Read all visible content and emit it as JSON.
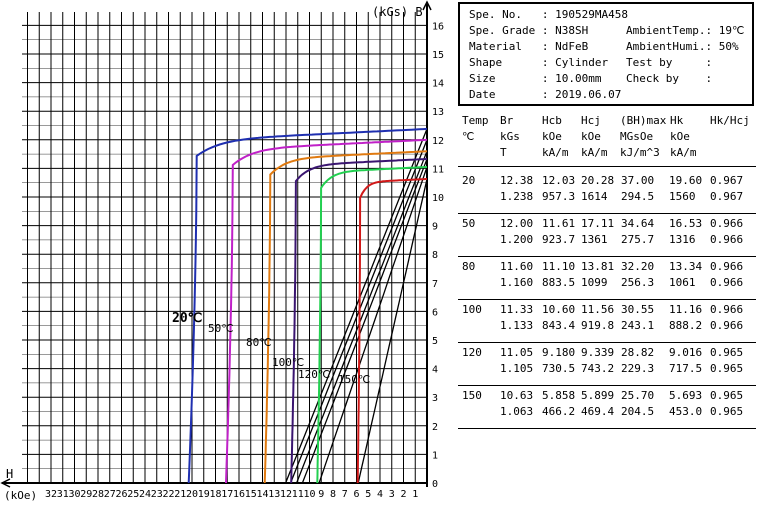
{
  "chart_data": {
    "type": "line",
    "axes": {
      "y_label": "(kGs) B",
      "x_label_top": "H",
      "x_label_bottom": "(kOe)",
      "y_ticks": [
        "0",
        "1",
        "2",
        "3",
        "4",
        "5",
        "6",
        "7",
        "8",
        "9",
        "10",
        "11",
        "12",
        "13",
        "14",
        "15",
        "16"
      ],
      "x_ticks": [
        "1",
        "2",
        "3",
        "4",
        "5",
        "6",
        "7",
        "8",
        "9",
        "10",
        "11",
        "12",
        "13",
        "14",
        "15",
        "16",
        "17",
        "18",
        "19",
        "20",
        "21",
        "22",
        "23",
        "24",
        "25",
        "26",
        "27",
        "28",
        "29",
        "30",
        "31",
        "32"
      ],
      "ylim": [
        0,
        16.5
      ],
      "xlim": [
        0,
        32.5
      ],
      "grid": true
    },
    "series": [
      {
        "name": "20℃",
        "color": "#1f2fb0",
        "Br": 12.38,
        "Hcj": 20.28,
        "Hk": 19.6,
        "label": "20℃"
      },
      {
        "name": "50℃",
        "color": "#c020c8",
        "Br": 12.0,
        "Hcj": 17.11,
        "Hk": 16.53,
        "label": "50℃"
      },
      {
        "name": "80℃",
        "color": "#e07a10",
        "Br": 11.6,
        "Hcj": 13.81,
        "Hk": 13.34,
        "label": "80℃"
      },
      {
        "name": "100℃",
        "color": "#3a1570",
        "Br": 11.33,
        "Hcj": 11.56,
        "Hk": 11.16,
        "label": "100℃"
      },
      {
        "name": "120℃",
        "color": "#22d050",
        "Br": 11.05,
        "Hcj": 9.339,
        "Hk": 9.016,
        "label": "120℃"
      },
      {
        "name": "150℃",
        "color": "#d01818",
        "Br": 10.63,
        "Hcj": 5.899,
        "Hk": 5.693,
        "label": "150℃"
      }
    ],
    "bh_lines": [
      {
        "Br": 12.38,
        "Hcb": 12.03
      },
      {
        "Br": 12.0,
        "Hcb": 11.61
      },
      {
        "Br": 11.6,
        "Hcb": 11.1
      },
      {
        "Br": 11.33,
        "Hcb": 10.6
      },
      {
        "Br": 11.05,
        "Hcb": 9.18
      },
      {
        "Br": 10.63,
        "Hcb": 5.858
      }
    ]
  },
  "info": {
    "left": [
      {
        "key": "Spe. No.   ",
        "value": ": 190529MA458"
      },
      {
        "key": "Spe. Grade ",
        "value": ": N38SH"
      },
      {
        "key": "Material   ",
        "value": ": NdFeB"
      },
      {
        "key": "Shape      ",
        "value": ": Cylinder"
      },
      {
        "key": "Size       ",
        "value": ": 10.00mm"
      },
      {
        "key": "Date       ",
        "value": ": 2019.06.07"
      }
    ],
    "right": [
      {
        "key": "AmbientTemp.",
        "value": ": 19℃"
      },
      {
        "key": "AmbientHumi.",
        "value": ": 50%"
      },
      {
        "key": "Test by     ",
        "value": ": "
      },
      {
        "key": "Check by    ",
        "value": ": "
      }
    ]
  },
  "table": {
    "headers": [
      [
        "Temp",
        "℃",
        ""
      ],
      [
        "Br",
        "kGs",
        "T"
      ],
      [
        "Hcb",
        "kOe",
        "kA/m"
      ],
      [
        "Hcj",
        "kOe",
        "kA/m"
      ],
      [
        "(BH)max",
        "MGsOe",
        "kJ/m^3"
      ],
      [
        "Hk",
        "kOe",
        "kA/m"
      ],
      [
        "Hk/Hcj",
        "",
        ""
      ]
    ],
    "rows": [
      {
        "temp": "20",
        "r1": [
          "12.38",
          "12.03",
          "20.28",
          "37.00",
          "19.60",
          "0.967"
        ],
        "r2": [
          "1.238",
          "957.3",
          "1614",
          "294.5",
          "1560",
          "0.967"
        ]
      },
      {
        "temp": "50",
        "r1": [
          "12.00",
          "11.61",
          "17.11",
          "34.64",
          "16.53",
          "0.966"
        ],
        "r2": [
          "1.200",
          "923.7",
          "1361",
          "275.7",
          "1316",
          "0.966"
        ]
      },
      {
        "temp": "80",
        "r1": [
          "11.60",
          "11.10",
          "13.81",
          "32.20",
          "13.34",
          "0.966"
        ],
        "r2": [
          "1.160",
          "883.5",
          "1099",
          "256.3",
          "1061",
          "0.966"
        ]
      },
      {
        "temp": "100",
        "r1": [
          "11.33",
          "10.60",
          "11.56",
          "30.55",
          "11.16",
          "0.966"
        ],
        "r2": [
          "1.133",
          "843.4",
          "919.8",
          "243.1",
          "888.2",
          "0.966"
        ]
      },
      {
        "temp": "120",
        "r1": [
          "11.05",
          "9.180",
          "9.339",
          "28.82",
          "9.016",
          "0.965"
        ],
        "r2": [
          "1.105",
          "730.5",
          "743.2",
          "229.3",
          "717.5",
          "0.965"
        ]
      },
      {
        "temp": "150",
        "r1": [
          "10.63",
          "5.858",
          "5.899",
          "25.70",
          "5.693",
          "0.965"
        ],
        "r2": [
          "1.063",
          "466.2",
          "469.4",
          "204.5",
          "453.0",
          "0.965"
        ]
      }
    ]
  }
}
